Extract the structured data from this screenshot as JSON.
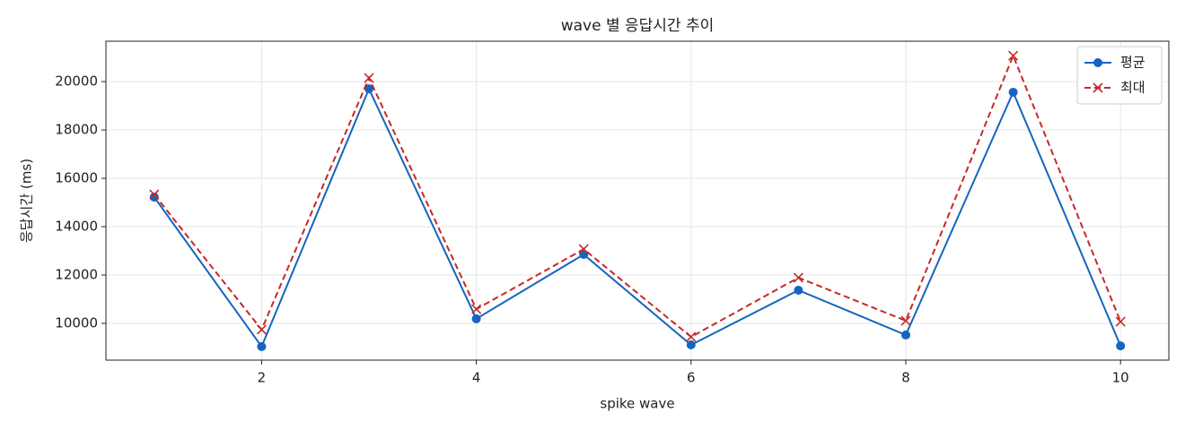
{
  "chart_data": {
    "type": "line",
    "title": "wave 별 응답시간 추이",
    "x_label": "spike wave",
    "y_label": "응답시간 (ms)",
    "x": [
      1,
      2,
      3,
      4,
      5,
      6,
      7,
      8,
      9,
      10
    ],
    "series": [
      {
        "name": "평균",
        "color": "#1565c0",
        "marker": "circle",
        "linestyle": "solid",
        "values": [
          15220,
          9040,
          19700,
          10190,
          12850,
          9110,
          11370,
          9520,
          19560,
          9070
        ]
      },
      {
        "name": "최대",
        "color": "#c62828",
        "marker": "x",
        "linestyle": "dashed",
        "values": [
          15330,
          9740,
          20150,
          10590,
          13070,
          9440,
          11890,
          10110,
          21070,
          10070
        ]
      }
    ],
    "xlim": [
      0.55,
      10.45
    ],
    "ylim": [
      8480,
      21670
    ],
    "xticks": [
      2,
      4,
      6,
      8,
      10
    ],
    "yticks": [
      10000,
      12000,
      14000,
      16000,
      18000,
      20000
    ],
    "grid": true,
    "legend": "upper right"
  }
}
